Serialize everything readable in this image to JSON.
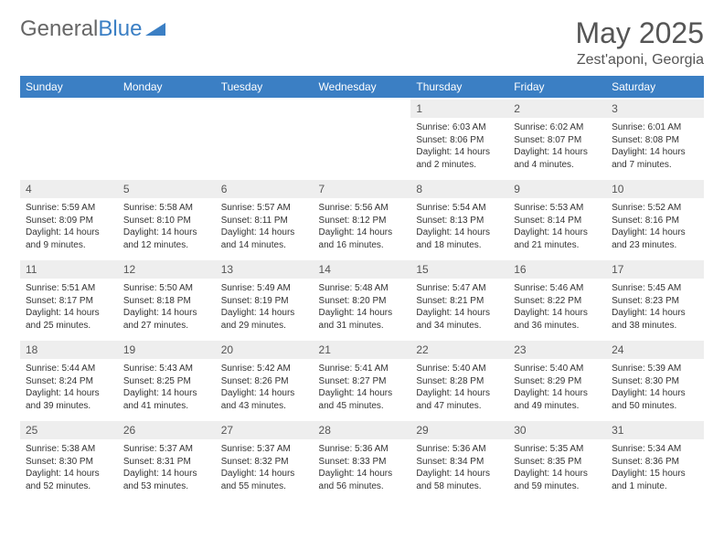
{
  "logo": {
    "text_gray": "General",
    "text_blue": "Blue"
  },
  "title": "May 2025",
  "location": "Zest'aponi, Georgia",
  "colors": {
    "header_bg": "#3b7fc4",
    "header_text": "#ffffff",
    "daynum_bg": "#eeeeee",
    "body_text": "#333333",
    "logo_gray": "#666666",
    "logo_blue": "#3b7fc4"
  },
  "fonts": {
    "title_size": 32,
    "location_size": 16,
    "dow_size": 12,
    "cell_size": 10
  },
  "days_of_week": [
    "Sunday",
    "Monday",
    "Tuesday",
    "Wednesday",
    "Thursday",
    "Friday",
    "Saturday"
  ],
  "weeks": [
    [
      null,
      null,
      null,
      null,
      {
        "n": "1",
        "sr": "Sunrise: 6:03 AM",
        "ss": "Sunset: 8:06 PM",
        "d1": "Daylight: 14 hours",
        "d2": "and 2 minutes."
      },
      {
        "n": "2",
        "sr": "Sunrise: 6:02 AM",
        "ss": "Sunset: 8:07 PM",
        "d1": "Daylight: 14 hours",
        "d2": "and 4 minutes."
      },
      {
        "n": "3",
        "sr": "Sunrise: 6:01 AM",
        "ss": "Sunset: 8:08 PM",
        "d1": "Daylight: 14 hours",
        "d2": "and 7 minutes."
      }
    ],
    [
      {
        "n": "4",
        "sr": "Sunrise: 5:59 AM",
        "ss": "Sunset: 8:09 PM",
        "d1": "Daylight: 14 hours",
        "d2": "and 9 minutes."
      },
      {
        "n": "5",
        "sr": "Sunrise: 5:58 AM",
        "ss": "Sunset: 8:10 PM",
        "d1": "Daylight: 14 hours",
        "d2": "and 12 minutes."
      },
      {
        "n": "6",
        "sr": "Sunrise: 5:57 AM",
        "ss": "Sunset: 8:11 PM",
        "d1": "Daylight: 14 hours",
        "d2": "and 14 minutes."
      },
      {
        "n": "7",
        "sr": "Sunrise: 5:56 AM",
        "ss": "Sunset: 8:12 PM",
        "d1": "Daylight: 14 hours",
        "d2": "and 16 minutes."
      },
      {
        "n": "8",
        "sr": "Sunrise: 5:54 AM",
        "ss": "Sunset: 8:13 PM",
        "d1": "Daylight: 14 hours",
        "d2": "and 18 minutes."
      },
      {
        "n": "9",
        "sr": "Sunrise: 5:53 AM",
        "ss": "Sunset: 8:14 PM",
        "d1": "Daylight: 14 hours",
        "d2": "and 21 minutes."
      },
      {
        "n": "10",
        "sr": "Sunrise: 5:52 AM",
        "ss": "Sunset: 8:16 PM",
        "d1": "Daylight: 14 hours",
        "d2": "and 23 minutes."
      }
    ],
    [
      {
        "n": "11",
        "sr": "Sunrise: 5:51 AM",
        "ss": "Sunset: 8:17 PM",
        "d1": "Daylight: 14 hours",
        "d2": "and 25 minutes."
      },
      {
        "n": "12",
        "sr": "Sunrise: 5:50 AM",
        "ss": "Sunset: 8:18 PM",
        "d1": "Daylight: 14 hours",
        "d2": "and 27 minutes."
      },
      {
        "n": "13",
        "sr": "Sunrise: 5:49 AM",
        "ss": "Sunset: 8:19 PM",
        "d1": "Daylight: 14 hours",
        "d2": "and 29 minutes."
      },
      {
        "n": "14",
        "sr": "Sunrise: 5:48 AM",
        "ss": "Sunset: 8:20 PM",
        "d1": "Daylight: 14 hours",
        "d2": "and 31 minutes."
      },
      {
        "n": "15",
        "sr": "Sunrise: 5:47 AM",
        "ss": "Sunset: 8:21 PM",
        "d1": "Daylight: 14 hours",
        "d2": "and 34 minutes."
      },
      {
        "n": "16",
        "sr": "Sunrise: 5:46 AM",
        "ss": "Sunset: 8:22 PM",
        "d1": "Daylight: 14 hours",
        "d2": "and 36 minutes."
      },
      {
        "n": "17",
        "sr": "Sunrise: 5:45 AM",
        "ss": "Sunset: 8:23 PM",
        "d1": "Daylight: 14 hours",
        "d2": "and 38 minutes."
      }
    ],
    [
      {
        "n": "18",
        "sr": "Sunrise: 5:44 AM",
        "ss": "Sunset: 8:24 PM",
        "d1": "Daylight: 14 hours",
        "d2": "and 39 minutes."
      },
      {
        "n": "19",
        "sr": "Sunrise: 5:43 AM",
        "ss": "Sunset: 8:25 PM",
        "d1": "Daylight: 14 hours",
        "d2": "and 41 minutes."
      },
      {
        "n": "20",
        "sr": "Sunrise: 5:42 AM",
        "ss": "Sunset: 8:26 PM",
        "d1": "Daylight: 14 hours",
        "d2": "and 43 minutes."
      },
      {
        "n": "21",
        "sr": "Sunrise: 5:41 AM",
        "ss": "Sunset: 8:27 PM",
        "d1": "Daylight: 14 hours",
        "d2": "and 45 minutes."
      },
      {
        "n": "22",
        "sr": "Sunrise: 5:40 AM",
        "ss": "Sunset: 8:28 PM",
        "d1": "Daylight: 14 hours",
        "d2": "and 47 minutes."
      },
      {
        "n": "23",
        "sr": "Sunrise: 5:40 AM",
        "ss": "Sunset: 8:29 PM",
        "d1": "Daylight: 14 hours",
        "d2": "and 49 minutes."
      },
      {
        "n": "24",
        "sr": "Sunrise: 5:39 AM",
        "ss": "Sunset: 8:30 PM",
        "d1": "Daylight: 14 hours",
        "d2": "and 50 minutes."
      }
    ],
    [
      {
        "n": "25",
        "sr": "Sunrise: 5:38 AM",
        "ss": "Sunset: 8:30 PM",
        "d1": "Daylight: 14 hours",
        "d2": "and 52 minutes."
      },
      {
        "n": "26",
        "sr": "Sunrise: 5:37 AM",
        "ss": "Sunset: 8:31 PM",
        "d1": "Daylight: 14 hours",
        "d2": "and 53 minutes."
      },
      {
        "n": "27",
        "sr": "Sunrise: 5:37 AM",
        "ss": "Sunset: 8:32 PM",
        "d1": "Daylight: 14 hours",
        "d2": "and 55 minutes."
      },
      {
        "n": "28",
        "sr": "Sunrise: 5:36 AM",
        "ss": "Sunset: 8:33 PM",
        "d1": "Daylight: 14 hours",
        "d2": "and 56 minutes."
      },
      {
        "n": "29",
        "sr": "Sunrise: 5:36 AM",
        "ss": "Sunset: 8:34 PM",
        "d1": "Daylight: 14 hours",
        "d2": "and 58 minutes."
      },
      {
        "n": "30",
        "sr": "Sunrise: 5:35 AM",
        "ss": "Sunset: 8:35 PM",
        "d1": "Daylight: 14 hours",
        "d2": "and 59 minutes."
      },
      {
        "n": "31",
        "sr": "Sunrise: 5:34 AM",
        "ss": "Sunset: 8:36 PM",
        "d1": "Daylight: 15 hours",
        "d2": "and 1 minute."
      }
    ]
  ]
}
